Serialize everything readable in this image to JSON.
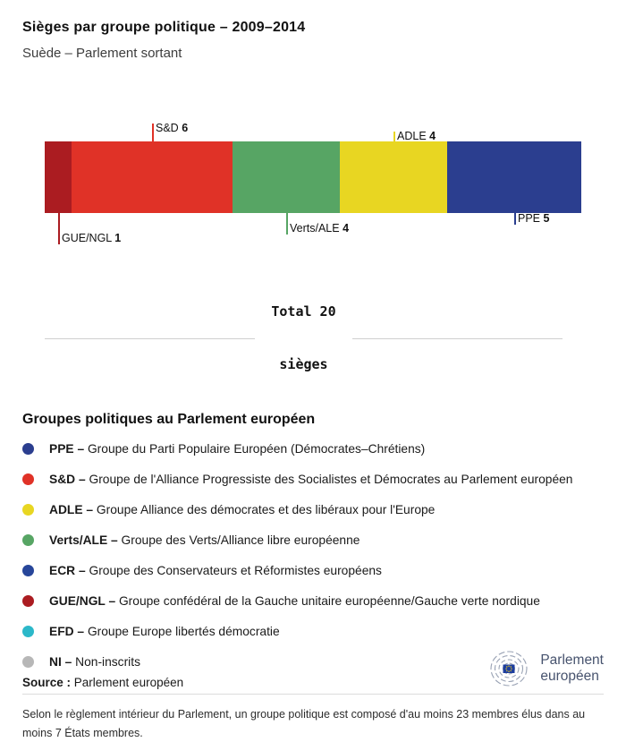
{
  "header": {
    "title": "Sièges par groupe politique – 2009–2014",
    "subtitle": "Suède – Parlement sortant"
  },
  "chart_data": {
    "type": "bar",
    "variant": "stacked-horizontal",
    "title": "Sièges par groupe politique – 2009–2014",
    "subtitle": "Suède – Parlement sortant",
    "total_seats": 20,
    "total_label_line1": "Total 20",
    "total_label_line2": "sièges",
    "segments": [
      {
        "name": "GUE/NGL",
        "value": 1,
        "color": "#ab1c21",
        "label_pos": "below",
        "label_gap": 35
      },
      {
        "name": "S&D",
        "value": 6,
        "color": "#e03227",
        "label_pos": "above",
        "label_gap": 20
      },
      {
        "name": "Verts/ALE",
        "value": 4,
        "color": "#57a564",
        "label_pos": "below",
        "label_gap": 24
      },
      {
        "name": "ADLE",
        "value": 4,
        "color": "#e8d622",
        "label_pos": "above",
        "label_gap": 11
      },
      {
        "name": "PPE",
        "value": 5,
        "color": "#2b3e8f",
        "label_pos": "below",
        "label_gap": 13
      }
    ]
  },
  "legend": {
    "heading": "Groupes politiques au Parlement européen",
    "items": [
      {
        "abbr": "PPE –",
        "desc": "Groupe du Parti Populaire Européen (Démocrates–Chrétiens)",
        "color": "#2b3e8f"
      },
      {
        "abbr": "S&D –",
        "desc": "Groupe de l'Alliance Progressiste des Socialistes et Démocrates au Parlement européen",
        "color": "#e03227"
      },
      {
        "abbr": "ADLE –",
        "desc": "Groupe Alliance des démocrates et des libéraux pour l'Europe",
        "color": "#e8d622"
      },
      {
        "abbr": "Verts/ALE –",
        "desc": "Groupe des Verts/Alliance libre européenne",
        "color": "#57a564"
      },
      {
        "abbr": "ECR –",
        "desc": "Groupe des Conservateurs et Réformistes européens",
        "color": "#27469a"
      },
      {
        "abbr": "GUE/NGL –",
        "desc": "Groupe confédéral de la Gauche unitaire européenne/Gauche verte nordique",
        "color": "#ab1c21"
      },
      {
        "abbr": "EFD –",
        "desc": "Groupe Europe libertés démocratie",
        "color": "#2cb8c9"
      },
      {
        "abbr": "NI –",
        "desc": "Non-inscrits",
        "color": "#b7b7b7"
      }
    ]
  },
  "footnote": "Selon le règlement intérieur du Parlement, un groupe politique est composé d'au moins 23 membres élus dans au moins 7 États membres.",
  "source": {
    "label": "Source :",
    "value": "Parlement européen"
  },
  "logo": {
    "line1": "Parlement",
    "line2": "européen"
  }
}
